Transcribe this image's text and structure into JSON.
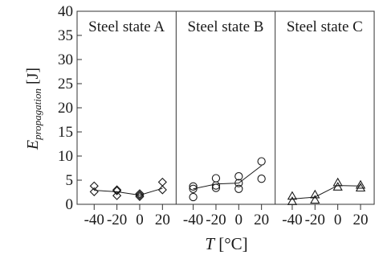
{
  "chart_data": {
    "type": "scatter",
    "ylabel_main": "E",
    "ylabel_sub": "propagation",
    "ylabel_unit": " [J]",
    "xlabel_var": "T",
    "xlabel_unit": " [°C]",
    "ylim": [
      0,
      40
    ],
    "yticks": [
      0,
      5,
      10,
      15,
      20,
      25,
      30,
      35,
      40
    ],
    "xlim": [
      -55,
      32
    ],
    "xticks": [
      -40,
      -20,
      0,
      20
    ],
    "xtick_labels": [
      "-40",
      "-20",
      "0",
      "20"
    ],
    "grid": false,
    "panels": [
      {
        "title": "Steel state A",
        "marker": "diamond",
        "points": [
          {
            "x": -40,
            "y": 3.8
          },
          {
            "x": -40,
            "y": 2.6
          },
          {
            "x": -20,
            "y": 3.0
          },
          {
            "x": -20,
            "y": 1.8
          },
          {
            "x": -20,
            "y": 2.8
          },
          {
            "x": 0,
            "y": 2.2
          },
          {
            "x": 0,
            "y": 1.6
          },
          {
            "x": 0,
            "y": 1.9
          },
          {
            "x": 20,
            "y": 4.6
          },
          {
            "x": 20,
            "y": 3.0
          }
        ],
        "trend": [
          {
            "x": -40,
            "y": 2.9
          },
          {
            "x": -20,
            "y": 2.6
          },
          {
            "x": 0,
            "y": 1.9
          },
          {
            "x": 20,
            "y": 3.3
          }
        ]
      },
      {
        "title": "Steel state B",
        "marker": "circle",
        "points": [
          {
            "x": -40,
            "y": 3.7
          },
          {
            "x": -40,
            "y": 3.2
          },
          {
            "x": -40,
            "y": 1.5
          },
          {
            "x": -20,
            "y": 5.4
          },
          {
            "x": -20,
            "y": 3.9
          },
          {
            "x": -20,
            "y": 3.4
          },
          {
            "x": 0,
            "y": 5.8
          },
          {
            "x": 0,
            "y": 4.4
          },
          {
            "x": 0,
            "y": 3.2
          },
          {
            "x": 20,
            "y": 8.9
          },
          {
            "x": 20,
            "y": 5.3
          }
        ],
        "trend": [
          {
            "x": -40,
            "y": 3.2
          },
          {
            "x": -20,
            "y": 4.2
          },
          {
            "x": 0,
            "y": 4.4
          },
          {
            "x": 20,
            "y": 8.0
          }
        ]
      },
      {
        "title": "Steel state C",
        "marker": "triangle",
        "points": [
          {
            "x": -40,
            "y": 1.7
          },
          {
            "x": -40,
            "y": 0.6
          },
          {
            "x": -20,
            "y": 2.0
          },
          {
            "x": -20,
            "y": 0.9
          },
          {
            "x": 0,
            "y": 4.5
          },
          {
            "x": 0,
            "y": 3.6
          },
          {
            "x": 20,
            "y": 4.0
          },
          {
            "x": 20,
            "y": 3.4
          }
        ],
        "trend": [
          {
            "x": -40,
            "y": 1.1
          },
          {
            "x": -20,
            "y": 1.5
          },
          {
            "x": 0,
            "y": 3.9
          },
          {
            "x": 20,
            "y": 3.8
          }
        ]
      }
    ]
  }
}
